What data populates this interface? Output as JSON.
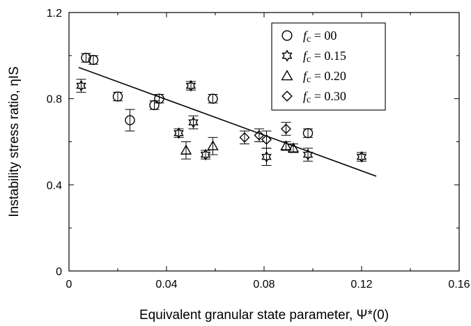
{
  "chart_data": {
    "type": "scatter",
    "xlabel": "Equivalent granular state parameter, Ψ*(0)",
    "ylabel": "Instability stress ratio, ηIS",
    "xlim": [
      0,
      0.16
    ],
    "ylim": [
      0,
      1.2
    ],
    "xticks": [
      "0",
      "0.04",
      "0.08",
      "0.12",
      "0.16"
    ],
    "yticks": [
      "0",
      "0.4",
      "0.8",
      "1.2"
    ],
    "grid": false,
    "legend_position": "top-right",
    "series": [
      {
        "name": "fc = 00",
        "marker": "circle",
        "points": [
          {
            "x": 0.007,
            "y": 0.99,
            "err": 0.02
          },
          {
            "x": 0.01,
            "y": 0.98,
            "err": 0.02
          },
          {
            "x": 0.02,
            "y": 0.81,
            "err": 0.02
          },
          {
            "x": 0.025,
            "y": 0.7,
            "err": 0.05
          },
          {
            "x": 0.035,
            "y": 0.77,
            "err": 0.02
          },
          {
            "x": 0.037,
            "y": 0.8,
            "err": 0.02
          },
          {
            "x": 0.059,
            "y": 0.8,
            "err": 0.02
          },
          {
            "x": 0.098,
            "y": 0.64,
            "err": 0.02
          }
        ]
      },
      {
        "name": "fc = 0.15",
        "marker": "star",
        "points": [
          {
            "x": 0.005,
            "y": 0.86,
            "err": 0.03
          },
          {
            "x": 0.045,
            "y": 0.64,
            "err": 0.02
          },
          {
            "x": 0.05,
            "y": 0.86,
            "err": 0.02
          },
          {
            "x": 0.051,
            "y": 0.69,
            "err": 0.03
          },
          {
            "x": 0.056,
            "y": 0.54,
            "err": 0.02
          },
          {
            "x": 0.081,
            "y": 0.53,
            "err": 0.04
          },
          {
            "x": 0.098,
            "y": 0.54,
            "err": 0.03
          },
          {
            "x": 0.12,
            "y": 0.53,
            "err": 0.02
          }
        ]
      },
      {
        "name": "fc = 0.20",
        "marker": "triangle",
        "points": [
          {
            "x": 0.048,
            "y": 0.56,
            "err": 0.04
          },
          {
            "x": 0.059,
            "y": 0.58,
            "err": 0.04
          },
          {
            "x": 0.089,
            "y": 0.58,
            "err": 0.02
          },
          {
            "x": 0.092,
            "y": 0.57,
            "err": 0.02
          }
        ]
      },
      {
        "name": "fc = 0.30",
        "marker": "diamond",
        "points": [
          {
            "x": 0.072,
            "y": 0.62,
            "err": 0.03
          },
          {
            "x": 0.078,
            "y": 0.63,
            "err": 0.03
          },
          {
            "x": 0.081,
            "y": 0.61,
            "err": 0.04
          },
          {
            "x": 0.089,
            "y": 0.66,
            "err": 0.03
          }
        ]
      }
    ],
    "trendline": {
      "x": [
        0.004,
        0.126
      ],
      "y": [
        0.945,
        0.44
      ]
    },
    "legend": [
      {
        "marker": "circle",
        "symbol": "f",
        "sub": "c",
        "text": " = 00"
      },
      {
        "marker": "star",
        "symbol": "f",
        "sub": "c",
        "text": " = 0.15"
      },
      {
        "marker": "triangle",
        "symbol": "f",
        "sub": "c",
        "text": " = 0.20"
      },
      {
        "marker": "diamond",
        "symbol": "f",
        "sub": "c",
        "text": " = 0.30"
      }
    ]
  }
}
